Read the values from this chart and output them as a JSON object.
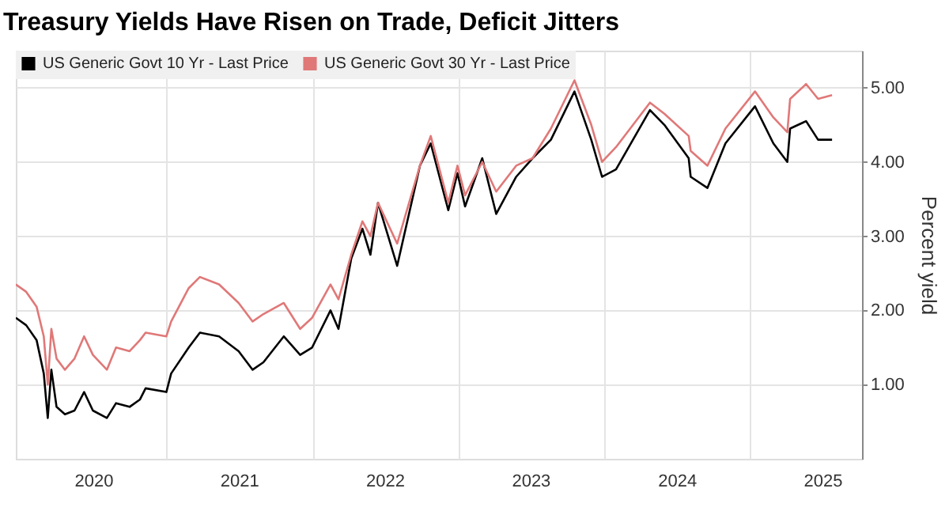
{
  "chart_data": {
    "type": "line",
    "title": "Treasury Yields Have Risen on Trade, Deficit Jitters",
    "ylabel": "Percent yield",
    "x": [
      "2019-12-20",
      "2020-01-15",
      "2020-02-10",
      "2020-02-28",
      "2020-03-09",
      "2020-03-18",
      "2020-03-31",
      "2020-04-21",
      "2020-05-15",
      "2020-06-08",
      "2020-06-30",
      "2020-08-04",
      "2020-08-27",
      "2020-09-30",
      "2020-10-26",
      "2020-11-09",
      "2020-12-31",
      "2021-01-12",
      "2021-02-25",
      "2021-03-25",
      "2021-05-12",
      "2021-06-30",
      "2021-08-04",
      "2021-08-31",
      "2021-10-21",
      "2021-12-01",
      "2021-12-31",
      "2022-02-15",
      "2022-03-07",
      "2022-04-08",
      "2022-05-06",
      "2022-05-26",
      "2022-06-14",
      "2022-08-01",
      "2022-09-27",
      "2022-10-24",
      "2022-12-07",
      "2022-12-30",
      "2023-01-18",
      "2023-03-02",
      "2023-04-06",
      "2023-05-26",
      "2023-07-06",
      "2023-08-21",
      "2023-10-19",
      "2023-11-30",
      "2023-12-27",
      "2024-01-31",
      "2024-04-25",
      "2024-05-31",
      "2024-07-31",
      "2024-08-05",
      "2024-09-16",
      "2024-10-31",
      "2025-01-13",
      "2025-02-28",
      "2025-04-04",
      "2025-04-11",
      "2025-05-21",
      "2025-06-20",
      "2025-07-25"
    ],
    "series": [
      {
        "name": "US Generic Govt 10 Yr - Last Price",
        "color": "#000000",
        "values": [
          1.9,
          1.8,
          1.6,
          1.15,
          0.55,
          1.2,
          0.7,
          0.6,
          0.65,
          0.9,
          0.65,
          0.55,
          0.75,
          0.7,
          0.8,
          0.95,
          0.9,
          1.15,
          1.5,
          1.7,
          1.65,
          1.45,
          1.2,
          1.3,
          1.65,
          1.4,
          1.5,
          2.0,
          1.75,
          2.7,
          3.1,
          2.75,
          3.45,
          2.6,
          3.95,
          4.25,
          3.35,
          3.85,
          3.4,
          4.05,
          3.3,
          3.8,
          4.05,
          4.3,
          4.95,
          4.3,
          3.8,
          3.9,
          4.7,
          4.5,
          4.05,
          3.8,
          3.65,
          4.25,
          4.75,
          4.25,
          4.0,
          4.45,
          4.55,
          4.3,
          4.3
        ]
      },
      {
        "name": "US Generic Govt 30 Yr - Last Price",
        "color": "#e07878",
        "values": [
          2.35,
          2.25,
          2.05,
          1.65,
          1.0,
          1.75,
          1.35,
          1.2,
          1.35,
          1.65,
          1.4,
          1.2,
          1.5,
          1.45,
          1.6,
          1.7,
          1.65,
          1.85,
          2.3,
          2.45,
          2.35,
          2.1,
          1.85,
          1.95,
          2.1,
          1.75,
          1.9,
          2.35,
          2.15,
          2.75,
          3.2,
          3.0,
          3.45,
          2.9,
          3.95,
          4.35,
          3.45,
          3.95,
          3.55,
          4.0,
          3.6,
          3.95,
          4.05,
          4.45,
          5.1,
          4.5,
          4.0,
          4.2,
          4.8,
          4.65,
          4.35,
          4.15,
          3.95,
          4.45,
          4.95,
          4.6,
          4.4,
          4.85,
          5.05,
          4.85,
          4.9
        ]
      }
    ],
    "xlim": [
      "2019-12-20",
      "2025-10-08"
    ],
    "xticks": [
      {
        "value": "2020-07-01",
        "label": "2020"
      },
      {
        "value": "2021-01-01",
        "label": null
      },
      {
        "value": "2021-07-01",
        "label": "2021"
      },
      {
        "value": "2022-01-01",
        "label": null
      },
      {
        "value": "2022-07-01",
        "label": "2022"
      },
      {
        "value": "2023-01-01",
        "label": null
      },
      {
        "value": "2023-07-01",
        "label": "2023"
      },
      {
        "value": "2024-01-01",
        "label": null
      },
      {
        "value": "2024-07-01",
        "label": "2024"
      },
      {
        "value": "2025-01-01",
        "label": null
      },
      {
        "value": "2025-07-01",
        "label": "2025"
      }
    ],
    "ylim": [
      0,
      5.5
    ],
    "yticks": [
      {
        "value": 1,
        "label": "1.00"
      },
      {
        "value": 2,
        "label": "2.00"
      },
      {
        "value": 3,
        "label": "3.00"
      },
      {
        "value": 4,
        "label": "4.00"
      },
      {
        "value": 5,
        "label": "5.00"
      }
    ],
    "grid": true,
    "legend": "top left",
    "line_style": "solid"
  }
}
